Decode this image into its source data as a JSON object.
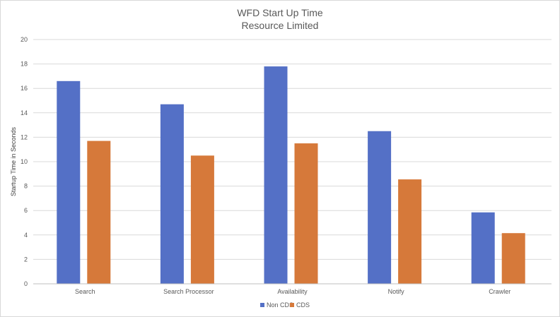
{
  "chart_data": {
    "type": "bar",
    "title": "WFD Start Up Time",
    "subtitle": "Resource Limited",
    "xlabel": "",
    "ylabel": "Startup Time in Seconds",
    "ylim": [
      0,
      20
    ],
    "yticks": [
      "0",
      "2",
      "4",
      "6",
      "8",
      "10",
      "12",
      "14",
      "16",
      "18",
      "20"
    ],
    "grid": true,
    "legend_position": "bottom",
    "categories": [
      "Search",
      "Search Processor",
      "Availability",
      "Notify",
      "Crawler"
    ],
    "series": [
      {
        "name": "Non CDS",
        "color": "#5470c6",
        "values": [
          16.6,
          14.7,
          17.8,
          12.5,
          5.85
        ]
      },
      {
        "name": "CDS",
        "color": "#d6793a",
        "values": [
          11.7,
          10.5,
          11.5,
          8.55,
          4.15
        ]
      }
    ]
  }
}
